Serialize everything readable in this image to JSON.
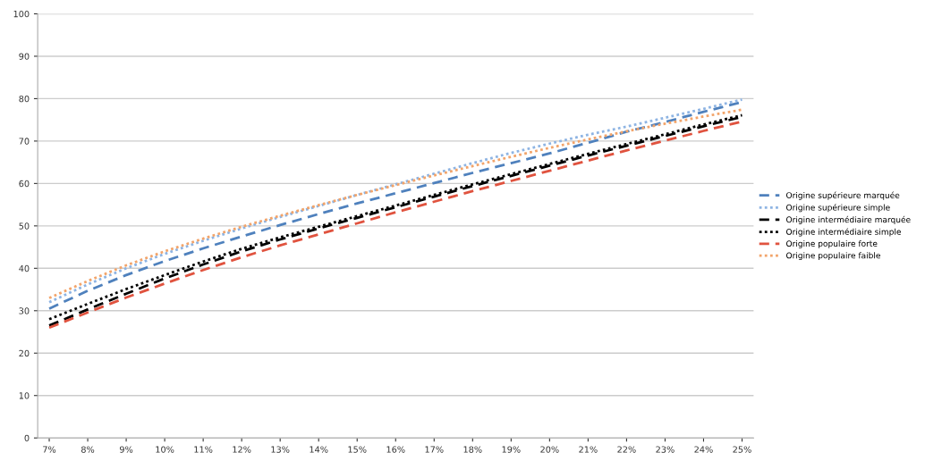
{
  "chart_data": {
    "type": "line",
    "categories": [
      "7%",
      "8%",
      "9%",
      "10%",
      "11%",
      "12%",
      "13%",
      "14%",
      "15%",
      "16%",
      "17%",
      "18%",
      "19%",
      "20%",
      "21%",
      "22%",
      "23%",
      "24%",
      "25%"
    ],
    "series": [
      {
        "name": "Origine supérieure marquée",
        "color": "#4f81bd",
        "line_style": "dashed",
        "values": [
          30.5,
          34.7,
          38.4,
          41.7,
          44.7,
          47.5,
          50.2,
          52.8,
          55.3,
          57.7,
          60.1,
          62.5,
          64.8,
          67.1,
          69.6,
          72.2,
          74.5,
          76.9,
          79.2
        ]
      },
      {
        "name": "Origine supérieure simple",
        "color": "#8eb4e3",
        "line_style": "dotted",
        "values": [
          32,
          36.2,
          40.0,
          43.4,
          46.5,
          49.4,
          52.1,
          54.7,
          57.3,
          59.8,
          62.3,
          64.8,
          67.2,
          69.4,
          71.5,
          73.4,
          75.5,
          77.6,
          79.8
        ]
      },
      {
        "name": "Origine intermédiaire marquée",
        "color": "#000000",
        "line_style": "dashed",
        "values": [
          26.5,
          30.3,
          34.0,
          37.6,
          40.9,
          44.0,
          46.8,
          49.4,
          51.9,
          54.4,
          56.9,
          59.4,
          61.8,
          64.2,
          66.6,
          68.9,
          71.2,
          73.5,
          75.7
        ]
      },
      {
        "name": "Origine intermédiaire simple",
        "color": "#000000",
        "line_style": "dotted",
        "values": [
          28,
          31.6,
          35.1,
          38.4,
          41.6,
          44.6,
          47.3,
          49.8,
          52.3,
          54.8,
          57.3,
          59.8,
          62.2,
          64.6,
          67.0,
          69.3,
          71.6,
          73.9,
          76.1
        ]
      },
      {
        "name": "Origine populaire forte",
        "color": "#e0533f",
        "line_style": "dashed",
        "values": [
          26,
          29.6,
          33.1,
          36.4,
          39.6,
          42.6,
          45.4,
          48.0,
          50.6,
          53.2,
          55.7,
          58.2,
          60.6,
          63.0,
          65.4,
          67.8,
          70.1,
          72.4,
          74.6
        ]
      },
      {
        "name": "Origine populaire faible",
        "color": "#f2a46a",
        "line_style": "dotted",
        "values": [
          33,
          37.0,
          40.7,
          44.0,
          47.0,
          49.8,
          52.4,
          54.9,
          57.3,
          59.6,
          61.9,
          64.1,
          66.3,
          68.4,
          70.4,
          72.3,
          74.1,
          75.8,
          77.4
        ]
      }
    ],
    "ylim": [
      0,
      100
    ],
    "yticks": [
      0,
      10,
      20,
      30,
      40,
      50,
      60,
      70,
      80,
      90,
      100
    ],
    "grid": "y",
    "legend": "right"
  }
}
